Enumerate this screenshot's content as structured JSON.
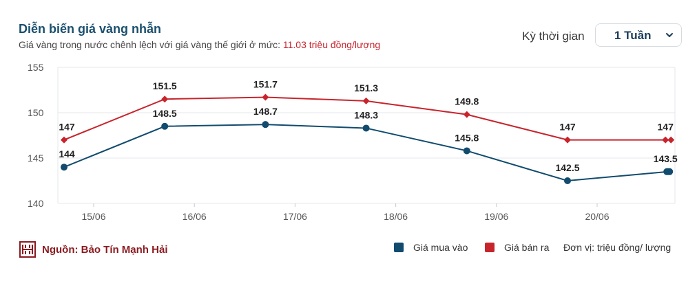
{
  "header": {
    "title": "Diễn biến giá vàng nhẫn",
    "subtitle_prefix": "Giá vàng trong nước chênh lệch với giá vàng thế giới ở mức: ",
    "subtitle_value": "11.03 triệu đồng/lượng"
  },
  "period": {
    "label": "Kỳ thời gian",
    "selected": "1 Tuần",
    "chevron_icon": "chevron-down-icon"
  },
  "footer": {
    "logo_icon": "bao-tin-manh-hai-logo-icon",
    "source": "Nguồn: Bảo Tín Mạnh Hải",
    "legend_buy": "Giá mua vào",
    "legend_sell": "Giá bán ra",
    "unit": "Đơn vị: triệu đồng/ lượng"
  },
  "colors": {
    "buy": "#114b6e",
    "sell": "#c8242c",
    "title": "#1a4f6e",
    "grid": "#e4e7eb"
  },
  "chart_data": {
    "type": "line",
    "title": "Diễn biến giá vàng nhẫn",
    "x_ticks": [
      "15/06",
      "16/06",
      "17/06",
      "18/06",
      "19/06",
      "20/06"
    ],
    "y_ticks": [
      140,
      145,
      150,
      155
    ],
    "ylim": [
      140,
      155
    ],
    "grid": true,
    "legend_position": "bottom-right",
    "point_labels": [
      "",
      "",
      "",
      "",
      "",
      "",
      ""
    ],
    "series": [
      {
        "name": "Giá mua vào",
        "color": "#114b6e",
        "marker": "circle",
        "values": [
          144,
          148.5,
          148.7,
          148.3,
          145.8,
          142.5,
          143.5
        ]
      },
      {
        "name": "Giá bán ra",
        "color": "#c8242c",
        "marker": "diamond",
        "values": [
          147,
          151.5,
          151.7,
          151.3,
          149.8,
          147,
          147
        ]
      }
    ]
  }
}
